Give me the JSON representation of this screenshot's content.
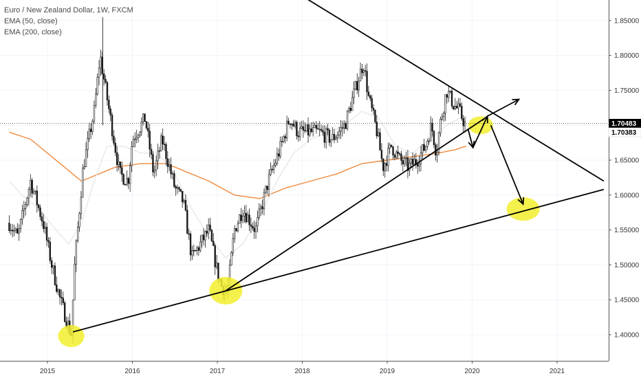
{
  "legend": {
    "title": "Euro / New Zealand Dollar, 1W, FXCM",
    "ema50": "EMA (50, close)",
    "ema200": "EMA (200, close)"
  },
  "price_labels": {
    "last": "1.70483",
    "ema": "1.70383"
  },
  "colors": {
    "candle": "#1a1a1a",
    "ema50": "#e8e8e8",
    "ema200": "#f08a3c",
    "trendline": "#000000",
    "highlight": "#f2ee2e",
    "grid": "#f0f3fa",
    "axis_line": "#555555"
  },
  "chart_data": {
    "type": "candlestick",
    "title": "Euro / New Zealand Dollar, 1W, FXCM",
    "y_ticks": [
      "1.85000",
      "1.80000",
      "1.75000",
      "1.70000",
      "1.65000",
      "1.60000",
      "1.55000",
      "1.50000",
      "1.45000",
      "1.40000"
    ],
    "x_ticks": [
      "2015",
      "2016",
      "2017",
      "2018",
      "2019",
      "2020",
      "2021"
    ],
    "ylim": [
      1.365,
      1.87
    ],
    "price_path": [
      [
        2014.55,
        1.56
      ],
      [
        2014.65,
        1.54
      ],
      [
        2014.8,
        1.62
      ],
      [
        2014.95,
        1.56
      ],
      [
        2015.05,
        1.5
      ],
      [
        2015.15,
        1.45
      ],
      [
        2015.28,
        1.4
      ],
      [
        2015.32,
        1.5
      ],
      [
        2015.42,
        1.64
      ],
      [
        2015.55,
        1.72
      ],
      [
        2015.62,
        1.8
      ],
      [
        2015.7,
        1.74
      ],
      [
        2015.85,
        1.63
      ],
      [
        2015.95,
        1.62
      ],
      [
        2016.0,
        1.68
      ],
      [
        2016.15,
        1.71
      ],
      [
        2016.25,
        1.63
      ],
      [
        2016.35,
        1.68
      ],
      [
        2016.5,
        1.61
      ],
      [
        2016.6,
        1.59
      ],
      [
        2016.7,
        1.51
      ],
      [
        2016.8,
        1.53
      ],
      [
        2016.9,
        1.55
      ],
      [
        2017.0,
        1.49
      ],
      [
        2017.05,
        1.47
      ],
      [
        2017.12,
        1.46
      ],
      [
        2017.2,
        1.55
      ],
      [
        2017.3,
        1.58
      ],
      [
        2017.45,
        1.55
      ],
      [
        2017.6,
        1.62
      ],
      [
        2017.75,
        1.67
      ],
      [
        2017.85,
        1.71
      ],
      [
        2017.95,
        1.69
      ],
      [
        2018.05,
        1.69
      ],
      [
        2018.2,
        1.69
      ],
      [
        2018.35,
        1.68
      ],
      [
        2018.5,
        1.7
      ],
      [
        2018.62,
        1.75
      ],
      [
        2018.72,
        1.79
      ],
      [
        2018.78,
        1.74
      ],
      [
        2018.88,
        1.69
      ],
      [
        2018.95,
        1.64
      ],
      [
        2019.05,
        1.67
      ],
      [
        2019.15,
        1.65
      ],
      [
        2019.25,
        1.64
      ],
      [
        2019.35,
        1.65
      ],
      [
        2019.45,
        1.67
      ],
      [
        2019.52,
        1.7
      ],
      [
        2019.58,
        1.66
      ],
      [
        2019.62,
        1.7
      ],
      [
        2019.7,
        1.75
      ],
      [
        2019.78,
        1.73
      ],
      [
        2019.85,
        1.72
      ],
      [
        2019.92,
        1.7
      ]
    ],
    "ema50": [
      [
        2014.55,
        1.62
      ],
      [
        2014.7,
        1.6
      ],
      [
        2014.9,
        1.58
      ],
      [
        2015.1,
        1.55
      ],
      [
        2015.25,
        1.53
      ],
      [
        2015.4,
        1.56
      ],
      [
        2015.55,
        1.62
      ],
      [
        2015.7,
        1.67
      ],
      [
        2015.9,
        1.67
      ],
      [
        2016.1,
        1.66
      ],
      [
        2016.3,
        1.66
      ],
      [
        2016.5,
        1.63
      ],
      [
        2016.7,
        1.58
      ],
      [
        2016.9,
        1.54
      ],
      [
        2017.1,
        1.51
      ],
      [
        2017.3,
        1.53
      ],
      [
        2017.5,
        1.57
      ],
      [
        2017.7,
        1.62
      ],
      [
        2017.9,
        1.66
      ],
      [
        2018.1,
        1.68
      ],
      [
        2018.3,
        1.69
      ],
      [
        2018.5,
        1.7
      ],
      [
        2018.7,
        1.72
      ],
      [
        2018.9,
        1.71
      ],
      [
        2019.1,
        1.67
      ],
      [
        2019.3,
        1.66
      ],
      [
        2019.5,
        1.68
      ],
      [
        2019.7,
        1.7
      ],
      [
        2019.85,
        1.71
      ],
      [
        2019.93,
        1.705
      ]
    ],
    "ema200": [
      [
        2014.55,
        1.69
      ],
      [
        2014.8,
        1.68
      ],
      [
        2015.0,
        1.66
      ],
      [
        2015.2,
        1.64
      ],
      [
        2015.4,
        1.62
      ],
      [
        2015.6,
        1.63
      ],
      [
        2015.8,
        1.64
      ],
      [
        2016.1,
        1.645
      ],
      [
        2016.4,
        1.645
      ],
      [
        2016.6,
        1.635
      ],
      [
        2016.9,
        1.62
      ],
      [
        2017.2,
        1.6
      ],
      [
        2017.5,
        1.595
      ],
      [
        2017.8,
        1.61
      ],
      [
        2018.1,
        1.62
      ],
      [
        2018.4,
        1.63
      ],
      [
        2018.7,
        1.645
      ],
      [
        2019.0,
        1.65
      ],
      [
        2019.3,
        1.655
      ],
      [
        2019.6,
        1.66
      ],
      [
        2019.8,
        1.665
      ],
      [
        2019.93,
        1.67
      ]
    ]
  }
}
